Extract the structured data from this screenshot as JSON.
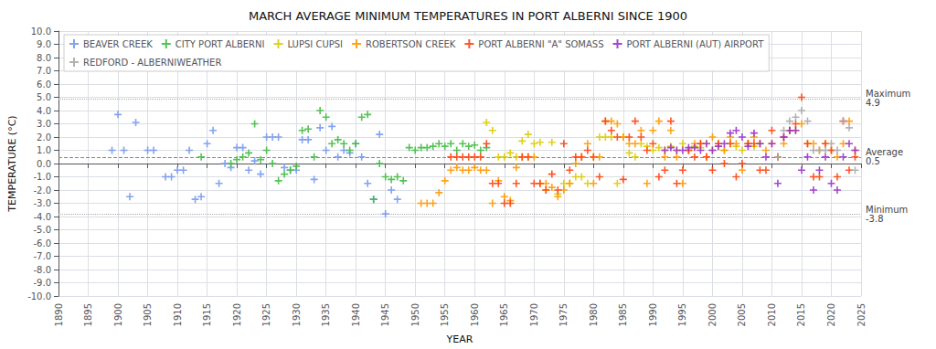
{
  "chart_data": {
    "type": "scatter",
    "title": "MARCH AVERAGE MINIMUM TEMPERATURES IN PORT ALBERNI SINCE 1900",
    "xlabel": "YEAR",
    "ylabel": "TEMPERATURE (°C)",
    "xlim": [
      1890,
      2025
    ],
    "ylim": [
      -10.0,
      10.0
    ],
    "xticks": [
      1890,
      1895,
      1900,
      1905,
      1910,
      1915,
      1920,
      1925,
      1930,
      1935,
      1940,
      1945,
      1950,
      1955,
      1960,
      1965,
      1970,
      1975,
      1980,
      1985,
      1990,
      1995,
      2000,
      2005,
      2010,
      2015,
      2020,
      2025
    ],
    "yticks": [
      {
        "value": -10,
        "label": "-10.0"
      },
      {
        "value": -9,
        "label": "-9.0"
      },
      {
        "value": -8,
        "label": "-8.0"
      },
      {
        "value": -7,
        "label": "-7.0"
      },
      {
        "value": -6,
        "label": "-6.0"
      },
      {
        "value": -5,
        "label": "-5.0"
      },
      {
        "value": -4,
        "label": "-4.0"
      },
      {
        "value": -3,
        "label": "-3.0"
      },
      {
        "value": -2,
        "label": "-2.0"
      },
      {
        "value": -1,
        "label": "-1.0"
      },
      {
        "value": 0,
        "label": "0.0"
      },
      {
        "value": 1,
        "label": "1.0"
      },
      {
        "value": 2,
        "label": "2.0"
      },
      {
        "value": 3,
        "label": "3.0"
      },
      {
        "value": 4,
        "label": "4.0"
      },
      {
        "value": 5,
        "label": "5.0"
      },
      {
        "value": 6,
        "label": "6.0"
      },
      {
        "value": 7,
        "label": "7.0"
      },
      {
        "value": 8,
        "label": "8.0"
      },
      {
        "value": 9,
        "label": "9.0"
      },
      {
        "value": 10,
        "label": "10.0"
      }
    ],
    "grid": true,
    "legend": "upper left",
    "marker": "plus",
    "reference_lines": [
      {
        "value": 0.5,
        "label": "Average\n0.5",
        "line_style": "dashed",
        "color": "#888888"
      },
      {
        "value": 4.9,
        "label": "Maximum\n4.9",
        "line_style": "dotted",
        "color": "#aaaaaa"
      },
      {
        "value": -3.8,
        "label": "Minimum\n-3.8",
        "line_style": "dotted",
        "color": "#aaaaaa"
      }
    ],
    "series": [
      {
        "name": "BEAVER CREEK",
        "color": "#7799ee",
        "x": [
          1899,
          1900,
          1901,
          1902,
          1903,
          1905,
          1906,
          1908,
          1909,
          1910,
          1911,
          1912,
          1913,
          1914,
          1915,
          1916,
          1917,
          1918,
          1919,
          1920,
          1921,
          1922,
          1923,
          1924,
          1925,
          1926,
          1927,
          1928,
          1929,
          1930,
          1931,
          1932,
          1933,
          1934,
          1935,
          1936,
          1937,
          1938,
          1939,
          1940,
          1941,
          1942,
          1943,
          1944,
          1945,
          1946,
          1947
        ],
        "values": [
          1.0,
          3.7,
          1.0,
          -2.5,
          3.1,
          1.0,
          1.0,
          -1.0,
          -1.0,
          -0.5,
          -0.5,
          1.0,
          -2.7,
          -2.5,
          1.5,
          2.5,
          -1.5,
          0.0,
          -0.3,
          1.2,
          1.2,
          -0.5,
          0.2,
          -0.8,
          2.0,
          2.0,
          2.0,
          -0.3,
          -0.5,
          -0.5,
          1.8,
          1.8,
          -1.2,
          2.7,
          1.0,
          2.8,
          0.5,
          1.0,
          0.8,
          1.5,
          0.5,
          -1.5,
          -2.7,
          2.2,
          -3.8,
          -2.0,
          -2.7
        ]
      },
      {
        "name": "CITY PORT ALBERNI",
        "color": "#44bb44",
        "x": [
          1914,
          1919,
          1920,
          1921,
          1922,
          1923,
          1924,
          1925,
          1926,
          1927,
          1928,
          1929,
          1930,
          1931,
          1932,
          1933,
          1934,
          1935,
          1936,
          1937,
          1938,
          1939,
          1940,
          1941,
          1942,
          1943,
          1944,
          1945,
          1946,
          1947,
          1948,
          1949,
          1950,
          1951,
          1952,
          1953,
          1954,
          1955,
          1956,
          1957,
          1958,
          1959,
          1960,
          1961,
          1962
        ],
        "values": [
          0.5,
          0.0,
          0.3,
          0.5,
          0.8,
          3.0,
          0.3,
          1.0,
          0.0,
          -1.3,
          -0.8,
          -0.5,
          -0.2,
          2.5,
          2.6,
          0.5,
          4.0,
          3.5,
          1.5,
          1.8,
          1.5,
          1.0,
          1.5,
          3.5,
          3.7,
          -2.7,
          0.0,
          -1.0,
          -1.2,
          -1.0,
          -1.3,
          1.2,
          1.0,
          1.2,
          1.2,
          1.3,
          1.5,
          1.3,
          1.5,
          1.0,
          1.5,
          1.3,
          1.4,
          1.0,
          1.2
        ]
      },
      {
        "name": "LUPSI CUPSI",
        "color": "#ddcc00",
        "x": [
          1962,
          1963,
          1964,
          1965,
          1966,
          1967,
          1968,
          1969,
          1970,
          1971,
          1972,
          1973,
          1974,
          1975,
          1976,
          1977,
          1978,
          1979,
          1980,
          1981,
          1982,
          1983,
          1984,
          1985,
          1986,
          1987,
          1988,
          1989,
          1990,
          1991,
          1992,
          1993,
          1994,
          1995,
          1996,
          1997,
          1998,
          1999,
          2000,
          2001,
          2002,
          2003,
          2004,
          2005,
          2006,
          2007,
          2008
        ],
        "values": [
          3.1,
          2.5,
          0.5,
          0.5,
          0.8,
          0.5,
          1.7,
          2.2,
          1.5,
          1.6,
          -2.0,
          1.6,
          -2.3,
          -1.5,
          -1.5,
          -1.0,
          -1.0,
          -1.5,
          0.5,
          2.0,
          2.0,
          2.0,
          -1.5,
          2.0,
          0.8,
          0.5,
          1.5,
          1.3,
          1.0,
          1.2,
          1.0,
          1.3,
          1.0,
          1.5,
          1.0,
          1.3,
          1.2,
          1.5,
          1.0,
          1.3,
          1.0,
          1.5,
          1.3,
          1.0,
          1.5,
          1.3,
          1.5
        ]
      },
      {
        "name": "ROBERTSON CREEK",
        "color": "#ff9900",
        "x": [
          1951,
          1952,
          1953,
          1954,
          1955,
          1956,
          1957,
          1958,
          1959,
          1960,
          1961,
          1962,
          1963,
          1964,
          1965,
          1966,
          1967,
          1968,
          1969,
          1970,
          1971,
          1972,
          1973,
          1974,
          1975,
          1976,
          1977,
          1978,
          1979,
          1980,
          1981,
          1982,
          1983,
          1984,
          1985,
          1986,
          1987,
          1988,
          1989,
          1990,
          1991,
          1992,
          1993,
          1994,
          1995,
          1996,
          1997,
          1998,
          1999,
          2000,
          2001,
          2002,
          2003,
          2004,
          2005,
          2006,
          2007,
          2008,
          2009,
          2010,
          2011,
          2012,
          2013,
          2014,
          2015,
          2016,
          2017,
          2018,
          2019,
          2020,
          2021,
          2022,
          2023,
          2024
        ],
        "values": [
          -3.0,
          -3.0,
          -3.0,
          -2.2,
          -1.3,
          -0.5,
          -0.3,
          -0.5,
          -0.5,
          -0.3,
          -0.5,
          -0.5,
          -3.0,
          -1.3,
          -2.5,
          -2.8,
          -0.3,
          0.5,
          0.5,
          0.5,
          -1.5,
          -1.5,
          -1.8,
          -2.5,
          -2.0,
          -1.5,
          0.0,
          0.5,
          1.5,
          -1.5,
          0.5,
          3.2,
          3.2,
          3.0,
          2.0,
          1.5,
          1.5,
          2.5,
          -1.5,
          2.5,
          3.2,
          0.5,
          2.5,
          0.5,
          -1.5,
          1.0,
          1.5,
          1.5,
          0.5,
          2.0,
          1.5,
          1.0,
          2.0,
          1.5,
          -0.5,
          1.5,
          2.0,
          1.5,
          1.0,
          1.5,
          0.5,
          1.5,
          2.5,
          2.5,
          3.0,
          1.5,
          1.5,
          1.0,
          1.5,
          1.0,
          0.5,
          1.5,
          3.2,
          1.0
        ]
      },
      {
        "name": "PORT ALBERNI \"A\" SOMASS",
        "color": "#ff4411",
        "x": [
          1956,
          1957,
          1958,
          1959,
          1960,
          1961,
          1962,
          1963,
          1964,
          1965,
          1966,
          1967,
          1968,
          1969,
          1970,
          1971,
          1972,
          1973,
          1974,
          1975,
          1976,
          1977,
          1978,
          1979,
          1980,
          1981,
          1982,
          1983,
          1984,
          1985,
          1986,
          1987,
          1988,
          1989,
          1990,
          1991,
          1992,
          1993,
          1994,
          1995,
          1996,
          1997,
          1998,
          1999,
          2000,
          2001,
          2002,
          2003,
          2004,
          2005,
          2006,
          2007,
          2008,
          2009,
          2010,
          2011,
          2012,
          2013,
          2014,
          2015,
          2016,
          2017,
          2018,
          2019,
          2020,
          2021,
          2022,
          2023,
          2024
        ],
        "values": [
          0.5,
          0.5,
          0.5,
          0.5,
          0.5,
          0.5,
          1.5,
          -1.5,
          -1.5,
          -3.0,
          -3.0,
          -1.5,
          0.5,
          0.5,
          -1.5,
          -1.5,
          -2.0,
          -0.8,
          -2.0,
          1.5,
          -0.5,
          0.5,
          0.5,
          1.0,
          0.5,
          -1.0,
          3.2,
          2.5,
          2.0,
          -1.2,
          2.0,
          3.2,
          2.0,
          1.0,
          1.5,
          -1.0,
          -0.5,
          3.2,
          -1.5,
          -0.5,
          1.0,
          0.5,
          1.5,
          0.5,
          -0.5,
          1.5,
          0.0,
          1.5,
          -1.0,
          0.0,
          1.5,
          1.5,
          -0.5,
          -0.5,
          2.5,
          0.5,
          2.0,
          2.5,
          3.0,
          5.0,
          1.5,
          -1.0,
          -1.0,
          1.5,
          1.0,
          -1.0,
          3.2,
          -0.5,
          0.5
        ]
      },
      {
        "name": "PORT ALBERNI (AUT) AIRPORT",
        "color": "#9933cc",
        "x": [
          1992,
          1993,
          1994,
          1995,
          1996,
          1997,
          1998,
          1999,
          2000,
          2001,
          2002,
          2003,
          2004,
          2005,
          2006,
          2007,
          2008,
          2009,
          2010,
          2011,
          2012,
          2013,
          2014,
          2015,
          2016,
          2017,
          2018,
          2019,
          2020,
          2021,
          2022,
          2023,
          2024
        ],
        "values": [
          1.0,
          1.2,
          1.0,
          1.0,
          1.2,
          1.2,
          1.0,
          1.5,
          1.0,
          1.3,
          1.5,
          2.3,
          2.5,
          2.0,
          1.3,
          2.3,
          1.5,
          0.5,
          1.5,
          -1.5,
          2.0,
          2.5,
          2.5,
          -0.5,
          0.5,
          -2.0,
          -0.5,
          0.5,
          -1.5,
          -2.0,
          0.5,
          1.5,
          1.0
        ]
      },
      {
        "name": "REDFORD - ALBERNIWEATHER",
        "color": "#aaaaaa",
        "x": [
          2011,
          2012,
          2013,
          2014,
          2015,
          2016,
          2017,
          2018,
          2019,
          2020,
          2021,
          2022,
          2023,
          2024
        ],
        "values": [
          0.5,
          2.5,
          3.2,
          3.5,
          4.0,
          3.2,
          1.0,
          1.0,
          1.0,
          1.5,
          1.0,
          3.2,
          2.7,
          -0.5
        ]
      }
    ]
  }
}
